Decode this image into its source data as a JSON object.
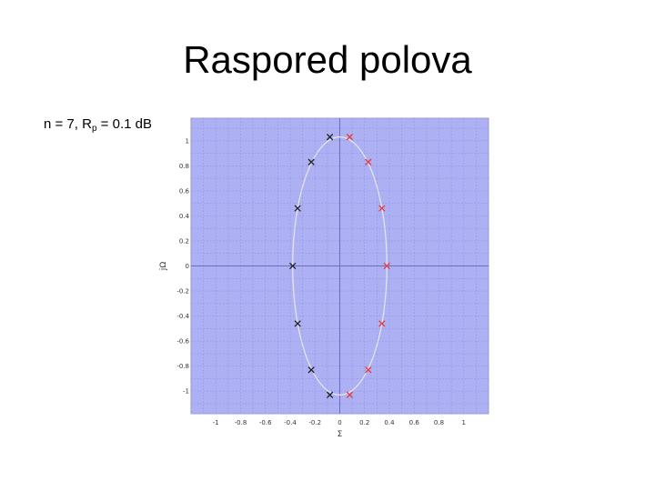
{
  "slide": {
    "title": "Raspored polova",
    "params": {
      "prefix": "n = 7, R",
      "sub": "p",
      "suffix": " = 0.1 dB"
    }
  },
  "colors": {
    "background": "#aeb0f4",
    "grid": "#8c8ee0",
    "axis": "#6a6cc6",
    "ellipse": "#e8e8e8",
    "left_poles": "#222222",
    "right_poles": "#e83a3a"
  },
  "chart_data": {
    "type": "scatter",
    "title": "",
    "xlabel": "Σ",
    "ylabel": "jΩ",
    "xlim": [
      -1.2,
      1.2
    ],
    "ylim": [
      -1.18,
      1.18
    ],
    "grid": true,
    "xticks": [
      -1,
      -0.8,
      -0.6,
      -0.4,
      -0.2,
      0,
      0.2,
      0.4,
      0.6,
      0.8,
      1
    ],
    "xtick_labels": [
      "-1",
      "-0.8",
      "-0.6",
      "-0.4",
      "-0.2",
      "0",
      "0.2",
      "0.4",
      "0.6",
      "0.8",
      "1"
    ],
    "yticks": [
      1,
      0.8,
      0.6,
      0.4,
      0.2,
      0,
      -0.2,
      -0.4,
      -0.6,
      -0.8,
      -1
    ],
    "ytick_labels": [
      "1",
      "0.8",
      "0.6",
      "0.4",
      "0.2",
      "0",
      "-0.2",
      "-0.4",
      "-0.6",
      "-0.8",
      "-1"
    ],
    "ellipse": {
      "cx": 0,
      "cy": 0,
      "rx": 0.38,
      "ry": 1.03
    },
    "series": [
      {
        "color": "#222222",
        "points": [
          [
            -0.08,
            1.03
          ],
          [
            -0.23,
            0.83
          ],
          [
            -0.34,
            0.46
          ],
          [
            -0.38,
            0
          ],
          [
            -0.34,
            -0.46
          ],
          [
            -0.23,
            -0.83
          ],
          [
            -0.08,
            -1.03
          ]
        ]
      },
      {
        "color": "#e83a3a",
        "points": [
          [
            0.08,
            1.03
          ],
          [
            0.23,
            0.83
          ],
          [
            0.34,
            0.46
          ],
          [
            0.38,
            0
          ],
          [
            0.34,
            -0.46
          ],
          [
            0.23,
            -0.83
          ],
          [
            0.08,
            -1.03
          ]
        ]
      }
    ]
  }
}
